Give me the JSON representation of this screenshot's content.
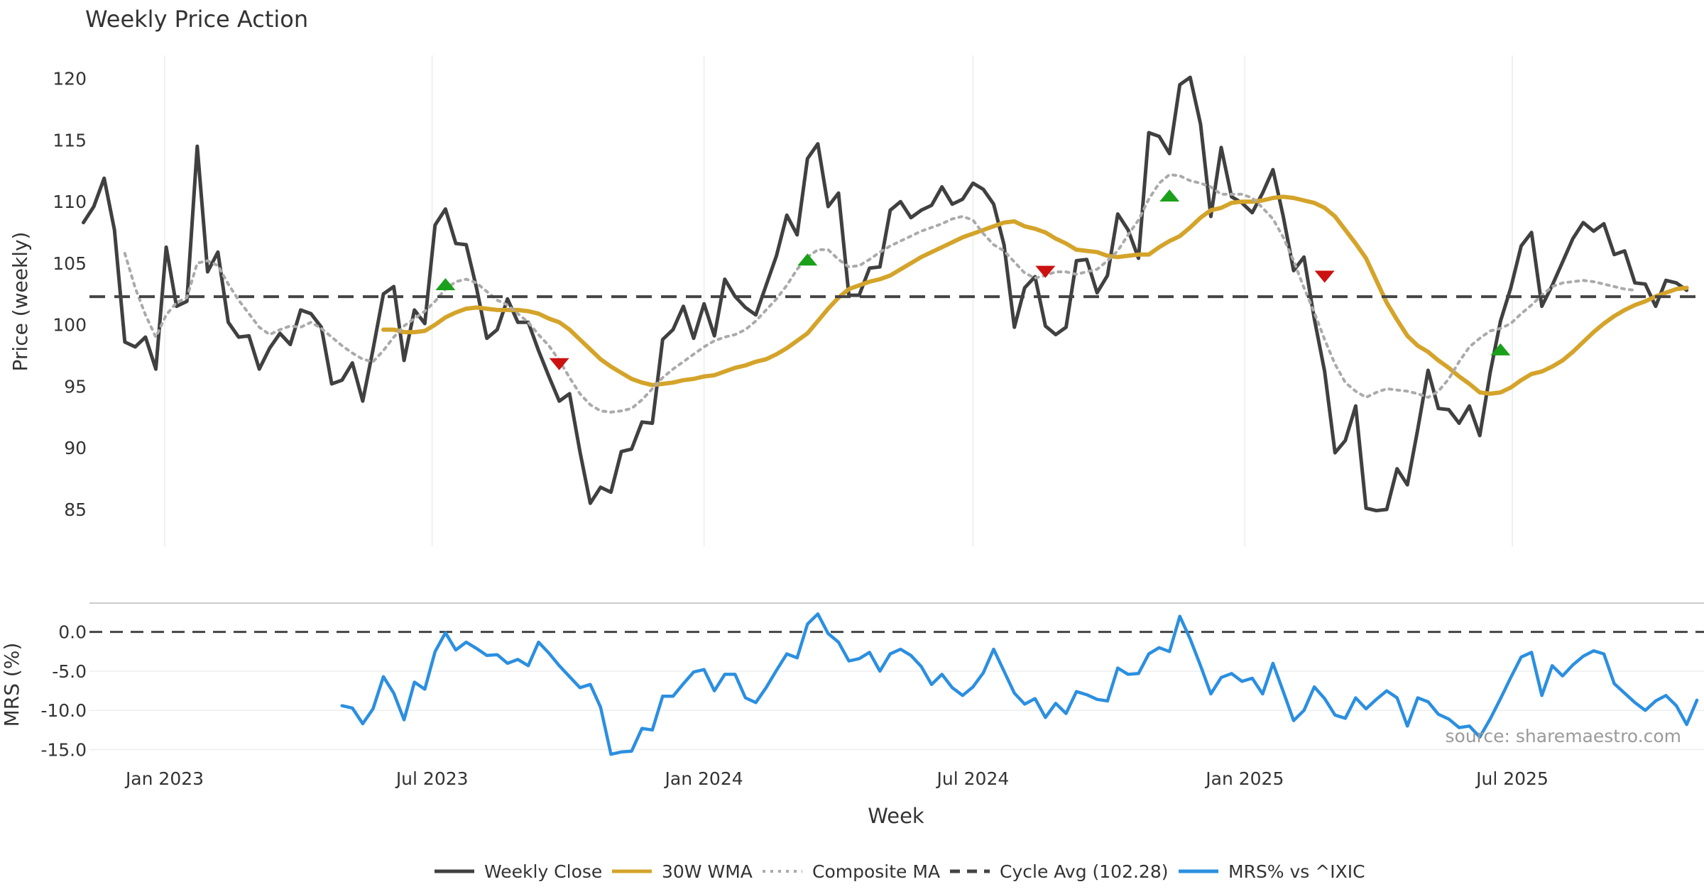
{
  "chart_data": [
    {
      "type": "line",
      "title": "Weekly Price Action",
      "ylabel": "Price (weekly)",
      "ylim": [
        82,
        122
      ],
      "yticks": [
        85,
        90,
        95,
        100,
        105,
        110,
        115,
        120
      ],
      "grid": true,
      "x_start": "2022-11-07",
      "x_step_days": 7,
      "series": [
        {
          "name": "Weekly Close",
          "color": "#404040",
          "style": "solid",
          "start_index": 0,
          "values": [
            108.3,
            109.6,
            111.9,
            107.7,
            98.6,
            98.2,
            99.0,
            96.4,
            106.3,
            101.5,
            101.9,
            114.5,
            104.3,
            105.9,
            100.2,
            99.0,
            99.1,
            96.4,
            98.1,
            99.3,
            98.4,
            101.2,
            100.9,
            99.8,
            95.2,
            95.5,
            96.9,
            93.8,
            98.0,
            102.5,
            103.1,
            97.1,
            101.2,
            100.1,
            108.1,
            109.4,
            106.6,
            106.5,
            103.0,
            98.9,
            99.6,
            102.1,
            100.2,
            100.2,
            97.9,
            95.8,
            93.8,
            94.4,
            89.7,
            85.5,
            86.8,
            86.4,
            89.7,
            89.9,
            92.1,
            92.0,
            98.8,
            99.6,
            101.5,
            98.9,
            101.7,
            99.1,
            103.7,
            102.3,
            101.4,
            100.8,
            103.2,
            105.6,
            108.9,
            107.3,
            113.5,
            114.7,
            109.6,
            110.7,
            102.4,
            102.4,
            104.6,
            104.7,
            109.3,
            110.0,
            108.7,
            109.3,
            109.7,
            111.2,
            109.8,
            110.2,
            111.5,
            111.0,
            109.8,
            106.5,
            99.8,
            103.0,
            103.9,
            99.9,
            99.2,
            99.8,
            105.2,
            105.3,
            102.6,
            104.0,
            109.0,
            107.7,
            105.4,
            115.6,
            115.3,
            113.9,
            119.5,
            120.1,
            116.3,
            108.8,
            114.4,
            110.4,
            109.9,
            109.1,
            110.7,
            112.6,
            108.8,
            104.4,
            105.5,
            100.5,
            96.2,
            89.6,
            90.6,
            93.4,
            85.1,
            84.9,
            85.0,
            88.3,
            87.0,
            91.5,
            96.3,
            93.2,
            93.1,
            92.0,
            93.4,
            91.0,
            96.1,
            100.3,
            103.0,
            106.4,
            107.5,
            101.5,
            103.2,
            105.1,
            107.0,
            108.3,
            107.6,
            108.2,
            105.7,
            106.0,
            103.4,
            103.3,
            101.5,
            103.6,
            103.4,
            102.8
          ]
        },
        {
          "name": "30W WMA",
          "color": "#d4a42a",
          "style": "solid",
          "start_index": 29,
          "values": [
            99.6,
            99.6,
            99.4,
            99.4,
            99.5,
            100.0,
            100.6,
            101.0,
            101.3,
            101.4,
            101.3,
            101.2,
            101.2,
            101.2,
            101.1,
            100.9,
            100.5,
            100.2,
            99.6,
            98.8,
            98.0,
            97.2,
            96.6,
            96.1,
            95.6,
            95.3,
            95.1,
            95.2,
            95.3,
            95.5,
            95.6,
            95.8,
            95.9,
            96.2,
            96.5,
            96.7,
            97.0,
            97.2,
            97.6,
            98.1,
            98.7,
            99.3,
            100.3,
            101.3,
            102.2,
            102.9,
            103.2,
            103.5,
            103.7,
            104.0,
            104.5,
            105.0,
            105.5,
            105.9,
            106.3,
            106.7,
            107.1,
            107.4,
            107.7,
            108.0,
            108.3,
            108.4,
            108.0,
            107.8,
            107.5,
            107.0,
            106.6,
            106.1,
            106.0,
            105.9,
            105.6,
            105.5,
            105.6,
            105.7,
            105.7,
            106.3,
            106.8,
            107.2,
            107.9,
            108.7,
            109.3,
            109.5,
            109.9,
            110.0,
            110.0,
            110.1,
            110.3,
            110.4,
            110.3,
            110.1,
            109.9,
            109.5,
            108.8,
            107.7,
            106.6,
            105.4,
            103.6,
            101.8,
            100.4,
            99.1,
            98.3,
            97.8,
            97.1,
            96.5,
            95.8,
            95.2,
            94.5,
            94.4,
            94.5,
            94.9,
            95.5,
            96.0,
            96.2,
            96.6,
            97.1,
            97.8,
            98.6,
            99.4,
            100.1,
            100.7,
            101.2,
            101.6,
            101.9,
            102.3,
            102.6,
            102.9,
            103.0
          ]
        },
        {
          "name": "Composite MA",
          "color": "#aaaaaa",
          "style": "dotted",
          "start_index": 4,
          "values": [
            105.8,
            103.0,
            100.8,
            99.0,
            100.8,
            101.8,
            102.2,
            105.0,
            105.2,
            104.8,
            103.3,
            102.0,
            100.9,
            99.8,
            99.2,
            99.6,
            99.9,
            99.8,
            100.2,
            99.7,
            99.0,
            98.3,
            97.7,
            97.2,
            97.0,
            97.9,
            99.0,
            99.9,
            100.5,
            101.1,
            101.9,
            102.9,
            103.5,
            103.7,
            103.4,
            102.7,
            102.0,
            101.6,
            100.9,
            100.2,
            99.2,
            98.3,
            97.1,
            95.7,
            94.4,
            93.5,
            93.0,
            92.9,
            93.0,
            93.2,
            93.9,
            94.8,
            95.7,
            96.4,
            97.0,
            97.6,
            98.2,
            98.7,
            99.0,
            99.2,
            99.6,
            100.3,
            101.2,
            102.1,
            103.2,
            104.5,
            105.5,
            106.1,
            106.1,
            105.3,
            104.7,
            104.8,
            105.3,
            105.9,
            106.4,
            106.8,
            107.2,
            107.6,
            107.9,
            108.2,
            108.6,
            108.8,
            108.5,
            107.4,
            106.5,
            106.0,
            105.1,
            104.2,
            103.8,
            104.0,
            104.3,
            104.3,
            104.1,
            104.3,
            104.5,
            105.2,
            106.0,
            107.3,
            108.5,
            110.2,
            111.5,
            112.2,
            112.1,
            111.7,
            111.5,
            111.2,
            110.6,
            110.6,
            110.6,
            110.3,
            109.5,
            108.6,
            107.1,
            105.2,
            103.0,
            101.0,
            98.8,
            96.8,
            95.3,
            94.6,
            94.1,
            94.5,
            94.8,
            94.7,
            94.6,
            94.4,
            94.1,
            94.6,
            95.6,
            97.0,
            98.2,
            98.9,
            99.5,
            99.7,
            100.1,
            100.9,
            101.6,
            102.4,
            103.1,
            103.4,
            103.5,
            103.6,
            103.5,
            103.3,
            103.1,
            102.9,
            102.8
          ]
        },
        {
          "name": "Cycle Avg (102.28)",
          "color": "#444444",
          "style": "dashed",
          "constant": 102.28
        }
      ],
      "markers": [
        {
          "type": "buy",
          "color": "#1aa01a",
          "index": 35,
          "value": 103.3
        },
        {
          "type": "sell",
          "color": "#cc1111",
          "index": 46,
          "value": 96.8
        },
        {
          "type": "buy",
          "color": "#1aa01a",
          "index": 70,
          "value": 105.3
        },
        {
          "type": "sell",
          "color": "#cc1111",
          "index": 93,
          "value": 104.3
        },
        {
          "type": "buy",
          "color": "#1aa01a",
          "index": 105,
          "value": 110.5
        },
        {
          "type": "sell",
          "color": "#cc1111",
          "index": 120,
          "value": 103.9
        },
        {
          "type": "buy",
          "color": "#1aa01a",
          "index": 137,
          "value": 98.0
        }
      ]
    },
    {
      "type": "line",
      "ylabel": "MRS (%)",
      "xlabel": "Week",
      "ylim": [
        -15.5,
        3.5
      ],
      "yticks": [
        0.0,
        -5.0,
        -10.0,
        -15.0
      ],
      "ytick_labels": [
        "0.0",
        "-5.0",
        "-10.0",
        "-15.0"
      ],
      "xtick_labels": [
        "Jan 2023",
        "Jul 2023",
        "Jan 2024",
        "Jul 2024",
        "Jan 2025",
        "Jul 2025"
      ],
      "xtick_dates": [
        "2023-01-01",
        "2023-07-01",
        "2024-01-01",
        "2024-07-01",
        "2025-01-01",
        "2025-07-01"
      ],
      "zero_line": 0.0,
      "series": [
        {
          "name": "MRS% vs ^IXIC",
          "color": "#2b8fe0",
          "style": "solid",
          "start_index": 25,
          "values": [
            -9.4,
            -9.7,
            -11.7,
            -9.8,
            -5.7,
            -7.8,
            -11.2,
            -6.4,
            -7.3,
            -2.5,
            -0.1,
            -2.3,
            -1.3,
            -2.1,
            -3.0,
            -2.9,
            -4.0,
            -3.5,
            -4.3,
            -1.3,
            -2.7,
            -4.3,
            -5.7,
            -7.1,
            -6.7,
            -9.6,
            -15.6,
            -15.3,
            -15.2,
            -12.3,
            -12.5,
            -8.2,
            -8.2,
            -6.6,
            -5.1,
            -4.8,
            -7.5,
            -5.4,
            -5.4,
            -8.4,
            -9.0,
            -7.1,
            -4.9,
            -2.8,
            -3.3,
            1.0,
            2.3,
            -0.2,
            -1.3,
            -3.7,
            -3.4,
            -2.6,
            -5.0,
            -2.8,
            -2.2,
            -3.0,
            -4.4,
            -6.7,
            -5.4,
            -7.1,
            -8.1,
            -7.0,
            -5.2,
            -2.2,
            -5.0,
            -7.8,
            -9.2,
            -8.5,
            -10.9,
            -9.1,
            -10.4,
            -7.6,
            -8.0,
            -8.6,
            -8.8,
            -4.6,
            -5.4,
            -5.3,
            -2.8,
            -2.0,
            -2.5,
            2.0,
            -0.9,
            -4.3,
            -7.9,
            -5.8,
            -5.3,
            -6.3,
            -5.9,
            -7.9,
            -4.0,
            -7.6,
            -11.3,
            -10.0,
            -7.0,
            -8.5,
            -10.6,
            -11.0,
            -8.4,
            -9.8,
            -8.6,
            -7.5,
            -8.4,
            -12.0,
            -8.4,
            -8.9,
            -10.5,
            -11.1,
            -12.2,
            -12.0,
            -13.4,
            -11.1,
            -8.5,
            -5.8,
            -3.2,
            -2.6,
            -8.1,
            -4.3,
            -5.6,
            -4.2,
            -3.1,
            -2.4,
            -2.8,
            -6.6,
            -7.8,
            -9.0,
            -10.0,
            -8.8,
            -8.1,
            -9.4,
            -11.8,
            -8.7
          ]
        }
      ]
    }
  ],
  "source_text": "source: sharemaestro.com",
  "legend": [
    {
      "label": "Weekly Close",
      "color": "#404040",
      "style": "solid"
    },
    {
      "label": "30W WMA",
      "color": "#d4a42a",
      "style": "solid"
    },
    {
      "label": "Composite MA",
      "color": "#aaaaaa",
      "style": "dotted"
    },
    {
      "label": "Cycle Avg (102.28)",
      "color": "#444444",
      "style": "dashed"
    },
    {
      "label": "MRS% vs ^IXIC",
      "color": "#2b8fe0",
      "style": "solid"
    }
  ]
}
